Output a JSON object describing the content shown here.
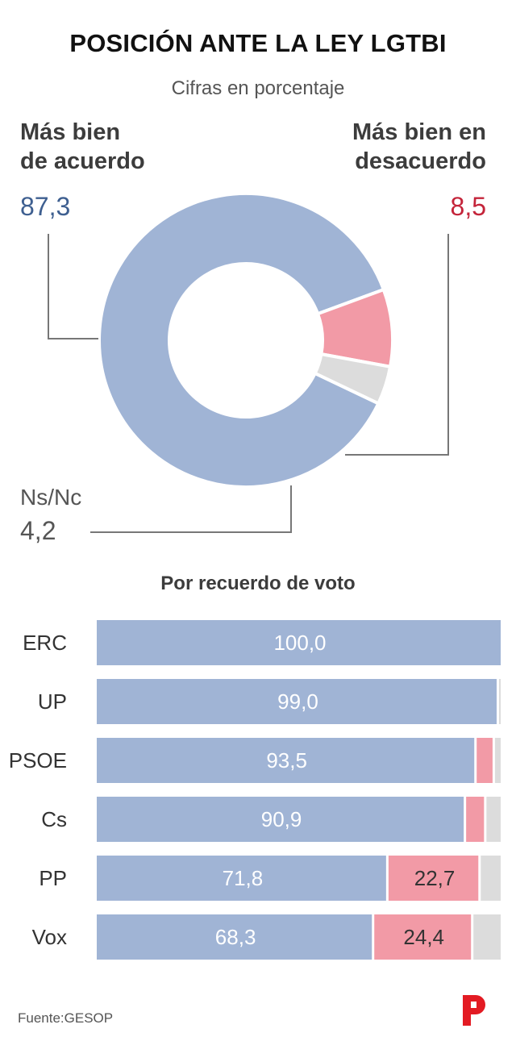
{
  "title": "POSICIÓN ANTE LA LEY LGTBI",
  "subtitle": "Cifras en porcentaje",
  "source": "Fuente:GESOP",
  "colors": {
    "agree": "#a0b4d5",
    "disagree": "#f29aa6",
    "nsnc": "#dcdcdc",
    "agree_text": "#3e5f90",
    "disagree_text": "#c4243a"
  },
  "chart_data": [
    {
      "type": "pie",
      "slices": [
        {
          "name": "Más bien\nde acuerdo",
          "value": 87.3,
          "label": "87,3"
        },
        {
          "name": "Más bien en\ndesacuerdo",
          "value": 8.5,
          "label": "8,5"
        },
        {
          "name": "Ns/Nc",
          "value": 4.2,
          "label": "4,2"
        }
      ]
    },
    {
      "type": "bar",
      "title": "Por recuerdo de voto",
      "categories": [
        "ERC",
        "UP",
        "PSOE",
        "Cs",
        "PP",
        "Vox"
      ],
      "series": [
        {
          "values": [
            100.0,
            99.0,
            93.5,
            90.9,
            71.8,
            68.3
          ],
          "labels": [
            "100,0",
            "99,0",
            "93,5",
            "90,9",
            "71,8",
            "68,3"
          ]
        },
        {
          "values": [
            0,
            0,
            4.5,
            5.0,
            22.7,
            24.4
          ],
          "labels": [
            "",
            "",
            "",
            "",
            "22,7",
            "24,4"
          ]
        },
        {
          "values": [
            0,
            1.0,
            2.0,
            4.1,
            5.5,
            7.3
          ],
          "labels": [
            "",
            "",
            "",
            "",
            "",
            ""
          ]
        }
      ],
      "stacked": true,
      "xlim": [
        0,
        100
      ]
    }
  ]
}
